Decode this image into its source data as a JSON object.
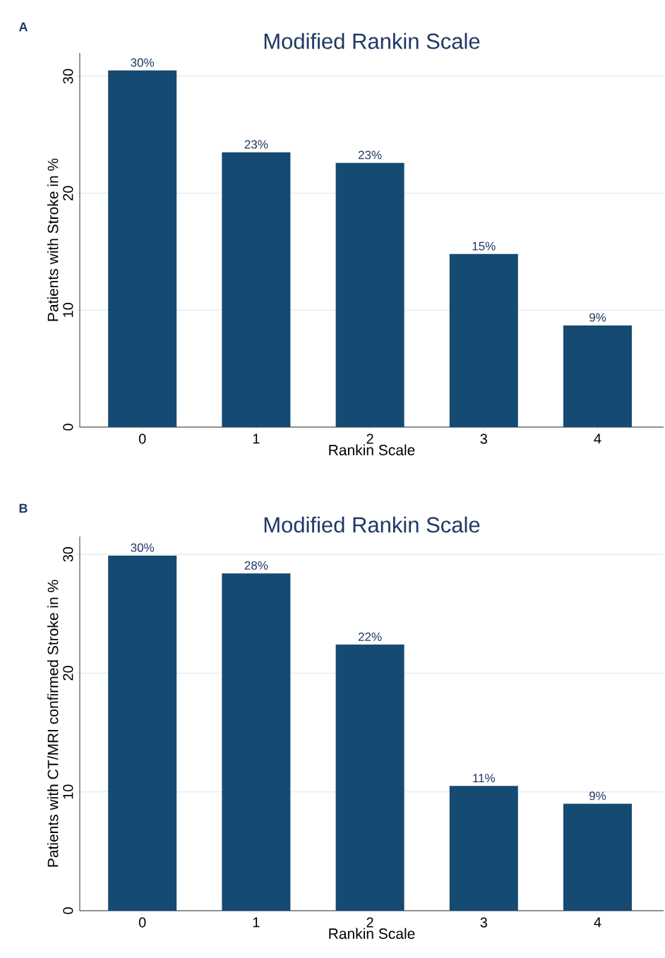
{
  "chart_data": [
    {
      "type": "bar",
      "title": "Modified Rankin Scale",
      "xlabel": "Rankin Scale",
      "ylabel": "Patients with Stroke in %",
      "annotations": [
        "A"
      ],
      "categories": [
        "0",
        "1",
        "2",
        "3",
        "4"
      ],
      "values": [
        30.5,
        23.5,
        22.6,
        14.8,
        8.7
      ],
      "value_labels": [
        "30%",
        "23%",
        "23%",
        "15%",
        "9%"
      ],
      "color": "#154a72",
      "ylim": [
        0,
        32
      ],
      "yticks": [
        0,
        10,
        20,
        30
      ],
      "grid": "y"
    },
    {
      "type": "bar",
      "title": "Modified Rankin Scale",
      "xlabel": "Rankin Scale",
      "ylabel": "Patients with CT/MRI confirmed Stroke in %",
      "annotations": [
        "B"
      ],
      "categories": [
        "0",
        "1",
        "2",
        "3",
        "4"
      ],
      "values": [
        29.9,
        28.4,
        22.4,
        10.5,
        9.0
      ],
      "value_labels": [
        "30%",
        "28%",
        "22%",
        "11%",
        "9%"
      ],
      "color": "#154a72",
      "ylim": [
        0,
        31.5
      ],
      "yticks": [
        0,
        10,
        20,
        30
      ],
      "grid": "y"
    }
  ]
}
